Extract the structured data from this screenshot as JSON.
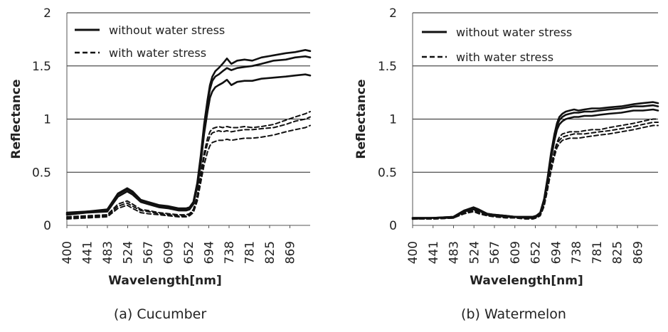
{
  "chart_data": [
    {
      "type": "line",
      "caption": "(a)  Cucumber",
      "xlabel": "Wavelength[nm]",
      "ylabel": "Reflectance",
      "x_ticks": [
        "400",
        "441",
        "483",
        "524",
        "567",
        "609",
        "652",
        "694",
        "738",
        "781",
        "825",
        "869"
      ],
      "xlim": [
        400,
        900
      ],
      "y_ticks": [
        "0",
        "0.5",
        "1",
        "1.5",
        "2"
      ],
      "ylim": [
        0,
        2
      ],
      "gridlines_y": [
        0.5,
        1,
        1.5,
        2
      ],
      "legend": {
        "position": "top-left",
        "entries": [
          {
            "label": "without water stress",
            "style": "solid"
          },
          {
            "label": "with water stress",
            "style": "dashed"
          }
        ]
      },
      "x": [
        400,
        441,
        483,
        505,
        524,
        535,
        552,
        567,
        590,
        609,
        630,
        645,
        652,
        660,
        668,
        675,
        682,
        689,
        694,
        699,
        705,
        712,
        720,
        729,
        738,
        750,
        765,
        781,
        800,
        825,
        850,
        869,
        890,
        900
      ],
      "series": [
        {
          "name": "without water stress 1",
          "style": "solid",
          "values": [
            0.12,
            0.13,
            0.15,
            0.3,
            0.35,
            0.32,
            0.24,
            0.22,
            0.19,
            0.18,
            0.16,
            0.16,
            0.17,
            0.22,
            0.4,
            0.65,
            0.95,
            1.18,
            1.32,
            1.4,
            1.45,
            1.48,
            1.52,
            1.57,
            1.52,
            1.55,
            1.56,
            1.55,
            1.58,
            1.6,
            1.62,
            1.63,
            1.65,
            1.64
          ]
        },
        {
          "name": "without water stress 2",
          "style": "solid",
          "values": [
            0.11,
            0.13,
            0.14,
            0.29,
            0.34,
            0.31,
            0.23,
            0.21,
            0.18,
            0.17,
            0.15,
            0.15,
            0.16,
            0.21,
            0.38,
            0.62,
            0.92,
            1.15,
            1.28,
            1.36,
            1.4,
            1.42,
            1.45,
            1.48,
            1.46,
            1.48,
            1.49,
            1.5,
            1.52,
            1.55,
            1.56,
            1.58,
            1.59,
            1.58
          ]
        },
        {
          "name": "without water stress 3",
          "style": "solid",
          "values": [
            0.1,
            0.12,
            0.13,
            0.27,
            0.32,
            0.29,
            0.22,
            0.2,
            0.17,
            0.16,
            0.14,
            0.14,
            0.15,
            0.2,
            0.36,
            0.58,
            0.86,
            1.07,
            1.2,
            1.26,
            1.3,
            1.32,
            1.34,
            1.37,
            1.32,
            1.35,
            1.36,
            1.36,
            1.38,
            1.39,
            1.4,
            1.41,
            1.42,
            1.41
          ]
        },
        {
          "name": "with water stress 1",
          "style": "dashed",
          "values": [
            0.08,
            0.09,
            0.1,
            0.2,
            0.23,
            0.2,
            0.15,
            0.14,
            0.12,
            0.11,
            0.1,
            0.1,
            0.11,
            0.15,
            0.28,
            0.48,
            0.68,
            0.82,
            0.88,
            0.91,
            0.92,
            0.93,
            0.92,
            0.93,
            0.92,
            0.92,
            0.93,
            0.92,
            0.93,
            0.95,
            0.99,
            1.02,
            1.05,
            1.07
          ]
        },
        {
          "name": "with water stress 2",
          "style": "dashed",
          "values": [
            0.07,
            0.08,
            0.09,
            0.18,
            0.21,
            0.18,
            0.14,
            0.13,
            0.11,
            0.1,
            0.09,
            0.09,
            0.1,
            0.14,
            0.26,
            0.45,
            0.64,
            0.77,
            0.84,
            0.87,
            0.88,
            0.89,
            0.88,
            0.89,
            0.88,
            0.89,
            0.9,
            0.9,
            0.91,
            0.92,
            0.95,
            0.98,
            1.0,
            1.02
          ]
        },
        {
          "name": "with water stress 3",
          "style": "dashed",
          "values": [
            0.06,
            0.07,
            0.08,
            0.16,
            0.19,
            0.16,
            0.12,
            0.11,
            0.1,
            0.09,
            0.08,
            0.08,
            0.09,
            0.12,
            0.23,
            0.4,
            0.57,
            0.69,
            0.75,
            0.78,
            0.79,
            0.8,
            0.8,
            0.81,
            0.8,
            0.81,
            0.82,
            0.82,
            0.83,
            0.85,
            0.88,
            0.9,
            0.92,
            0.94
          ]
        }
      ]
    },
    {
      "type": "line",
      "caption": "(b)  Watermelon",
      "xlabel": "Wavelength[nm]",
      "ylabel": "Reflectance",
      "x_ticks": [
        "400",
        "441",
        "483",
        "524",
        "567",
        "609",
        "652",
        "694",
        "738",
        "781",
        "825",
        "869"
      ],
      "xlim": [
        400,
        900
      ],
      "y_ticks": [
        "0",
        "0.5",
        "1",
        "1.5",
        "2"
      ],
      "ylim": [
        0,
        2
      ],
      "gridlines_y": [
        0.5,
        1,
        1.5,
        2
      ],
      "legend": {
        "position": "top-left",
        "entries": [
          {
            "label": "without water stress",
            "style": "solid"
          },
          {
            "label": "with water stress",
            "style": "dashed"
          }
        ]
      },
      "x": [
        400,
        441,
        483,
        505,
        524,
        535,
        552,
        567,
        590,
        609,
        630,
        645,
        652,
        660,
        668,
        675,
        682,
        689,
        694,
        699,
        705,
        712,
        720,
        729,
        738,
        750,
        765,
        781,
        800,
        825,
        850,
        869,
        890,
        900
      ],
      "series": [
        {
          "name": "without water stress 1",
          "style": "solid",
          "values": [
            0.07,
            0.07,
            0.08,
            0.14,
            0.17,
            0.15,
            0.11,
            0.1,
            0.09,
            0.08,
            0.08,
            0.08,
            0.09,
            0.12,
            0.25,
            0.45,
            0.68,
            0.86,
            0.96,
            1.02,
            1.05,
            1.07,
            1.08,
            1.09,
            1.08,
            1.09,
            1.1,
            1.1,
            1.11,
            1.12,
            1.14,
            1.15,
            1.16,
            1.15
          ]
        },
        {
          "name": "without water stress 2",
          "style": "solid",
          "values": [
            0.07,
            0.07,
            0.08,
            0.14,
            0.16,
            0.14,
            0.11,
            0.1,
            0.09,
            0.08,
            0.08,
            0.08,
            0.09,
            0.12,
            0.24,
            0.44,
            0.66,
            0.84,
            0.94,
            0.99,
            1.02,
            1.04,
            1.05,
            1.06,
            1.06,
            1.07,
            1.07,
            1.08,
            1.09,
            1.1,
            1.12,
            1.12,
            1.13,
            1.12
          ]
        },
        {
          "name": "without water stress 3",
          "style": "solid",
          "values": [
            0.06,
            0.07,
            0.07,
            0.13,
            0.15,
            0.14,
            0.1,
            0.09,
            0.08,
            0.08,
            0.07,
            0.07,
            0.08,
            0.11,
            0.23,
            0.42,
            0.63,
            0.8,
            0.9,
            0.95,
            0.98,
            1.0,
            1.01,
            1.02,
            1.02,
            1.03,
            1.03,
            1.04,
            1.05,
            1.06,
            1.08,
            1.08,
            1.09,
            1.08
          ]
        },
        {
          "name": "with water stress 1",
          "style": "dashed",
          "values": [
            0.06,
            0.06,
            0.07,
            0.12,
            0.14,
            0.13,
            0.1,
            0.09,
            0.08,
            0.07,
            0.07,
            0.07,
            0.08,
            0.1,
            0.2,
            0.38,
            0.56,
            0.7,
            0.78,
            0.83,
            0.86,
            0.87,
            0.88,
            0.88,
            0.88,
            0.89,
            0.9,
            0.9,
            0.92,
            0.94,
            0.96,
            0.98,
            1.0,
            1.0
          ]
        },
        {
          "name": "with water stress 2",
          "style": "dashed",
          "values": [
            0.06,
            0.06,
            0.07,
            0.11,
            0.13,
            0.12,
            0.09,
            0.09,
            0.08,
            0.07,
            0.07,
            0.07,
            0.07,
            0.1,
            0.19,
            0.36,
            0.54,
            0.68,
            0.76,
            0.8,
            0.83,
            0.84,
            0.85,
            0.86,
            0.86,
            0.86,
            0.87,
            0.88,
            0.89,
            0.91,
            0.93,
            0.95,
            0.97,
            0.97
          ]
        },
        {
          "name": "with water stress 3",
          "style": "dashed",
          "values": [
            0.06,
            0.06,
            0.07,
            0.11,
            0.13,
            0.11,
            0.09,
            0.08,
            0.07,
            0.07,
            0.06,
            0.06,
            0.07,
            0.09,
            0.18,
            0.34,
            0.51,
            0.65,
            0.73,
            0.77,
            0.8,
            0.81,
            0.82,
            0.82,
            0.82,
            0.83,
            0.84,
            0.85,
            0.86,
            0.88,
            0.9,
            0.92,
            0.94,
            0.94
          ]
        }
      ]
    }
  ]
}
